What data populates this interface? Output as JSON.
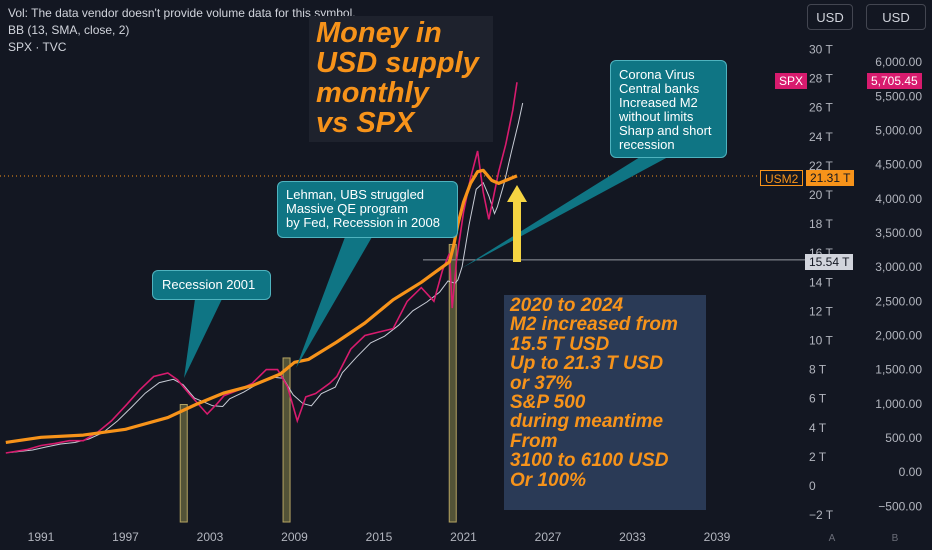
{
  "legend": {
    "vol": "Vol: The data vendor doesn't provide volume data for this symbol.",
    "bb": "BB (13, SMA, close, 2)",
    "symbol": "SPX · TVC"
  },
  "currency_buttons": [
    "USD",
    "USD"
  ],
  "title": "Money in\nUSD supply\nmonthly\nvs SPX",
  "annotations": {
    "corona": "Corona Virus\nCentral banks\nIncreased M2\nwithout limits\nSharp and short\nrecession",
    "lehman": "Lehman, UBS struggled\nMassive QE program\nby Fed, Recession in 2008",
    "recession2001": "Recession 2001",
    "summary": "2020 to 2024\nM2 increased from\n15.5 T USD\nUp to 21.3 T USD\nor 37%\nS&P 500\nduring meantime\nFrom\n3100 to 6100 USD\nOr 100%"
  },
  "tags": {
    "spx_label": "SPX",
    "spx_value": "5,705.45",
    "usm2_label": "USM2",
    "usm2_value": "21.31 T",
    "level_value": "15.54 T"
  },
  "axis_footer": {
    "left": "A",
    "right": "B"
  },
  "colors": {
    "background": "#131722",
    "spx": "#d81b6e",
    "m2": "#f7931a",
    "bb": "#c8ccd6",
    "teal": "#0f7584",
    "summary_box": "#2a3a56"
  },
  "chart_data": {
    "type": "line",
    "x_ticks": [
      "1991",
      "1997",
      "2003",
      "2009",
      "2015",
      "2021",
      "2027",
      "2033",
      "2039"
    ],
    "x_tick_values": [
      1991,
      1997,
      2003,
      2009,
      2015,
      2021,
      2027,
      2033,
      2039
    ],
    "xlim": [
      1988.5,
      2042
    ],
    "m2_axis": {
      "ticks": [
        "30 T",
        "28 T",
        "26 T",
        "24 T",
        "22 T",
        "20 T",
        "18 T",
        "16 T",
        "14 T",
        "12 T",
        "10 T",
        "8 T",
        "6 T",
        "4 T",
        "2 T",
        "0",
        "−2 T"
      ],
      "values": [
        30,
        28,
        26,
        24,
        22,
        20,
        18,
        16,
        14,
        12,
        10,
        8,
        6,
        4,
        2,
        0,
        -2
      ],
      "ylim": [
        -2.2,
        31.5
      ]
    },
    "spx_axis": {
      "ticks": [
        "6,000.00",
        "5,500.00",
        "5,000.00",
        "4,500.00",
        "4,000.00",
        "3,500.00",
        "3,000.00",
        "2,500.00",
        "2,000.00",
        "1,500.00",
        "1,000.00",
        "500.00",
        "0.00",
        "−500.00"
      ],
      "values": [
        6000,
        5500,
        5000,
        4500,
        4000,
        3500,
        3000,
        2500,
        2000,
        1500,
        1000,
        500,
        0,
        -500
      ]
    },
    "series": [
      {
        "name": "SPX",
        "x": [
          1988.5,
          1990,
          1991,
          1992,
          1993,
          1994,
          1995,
          1996,
          1997,
          1998,
          1999,
          2000,
          2000.7,
          2001.5,
          2002.8,
          2003.5,
          2004,
          2005,
          2006,
          2007,
          2007.8,
          2008.5,
          2009.2,
          2009.8,
          2010.5,
          2011.5,
          2012,
          2013,
          2014,
          2015,
          2016,
          2017,
          2018,
          2018.9,
          2019.5,
          2020,
          2020.2,
          2020.5,
          2021,
          2021.5,
          2022,
          2022.4,
          2022.8,
          2023,
          2023.5,
          2024,
          2024.5,
          2024.8
        ],
        "values": [
          280,
          330,
          390,
          420,
          460,
          460,
          580,
          750,
          970,
          1200,
          1400,
          1450,
          1350,
          1150,
          850,
          1000,
          1120,
          1200,
          1300,
          1500,
          1500,
          1250,
          750,
          1100,
          1150,
          1300,
          1400,
          1800,
          2000,
          2050,
          2100,
          2500,
          2700,
          2500,
          2950,
          3200,
          2400,
          3100,
          3800,
          4300,
          4700,
          4100,
          3700,
          3900,
          4400,
          4800,
          5300,
          5705.45
        ]
      },
      {
        "name": "USM2",
        "x": [
          1988.5,
          1991,
          1994,
          1997,
          2000,
          2002,
          2004,
          2006,
          2008,
          2009,
          2010,
          2012,
          2014,
          2016,
          2018,
          2019,
          2020,
          2020.3,
          2020.6,
          2021,
          2021.5,
          2022,
          2022.4,
          2023,
          2023.5,
          2024,
          2024.8
        ],
        "values": [
          3.0,
          3.35,
          3.5,
          3.9,
          4.7,
          5.6,
          6.4,
          6.9,
          7.7,
          8.5,
          8.7,
          9.9,
          11.2,
          12.8,
          14.0,
          14.7,
          15.4,
          16.5,
          18.0,
          19.5,
          20.8,
          21.6,
          21.7,
          21.0,
          20.8,
          21.0,
          21.31
        ]
      }
    ],
    "marked_level": 15.54,
    "recession_bars": [
      {
        "x": 2001.1,
        "to_m2": 5.6
      },
      {
        "x": 2008.4,
        "to_m2": 8.8
      },
      {
        "x": 2020.2,
        "to_m2": 16.6
      }
    ]
  }
}
